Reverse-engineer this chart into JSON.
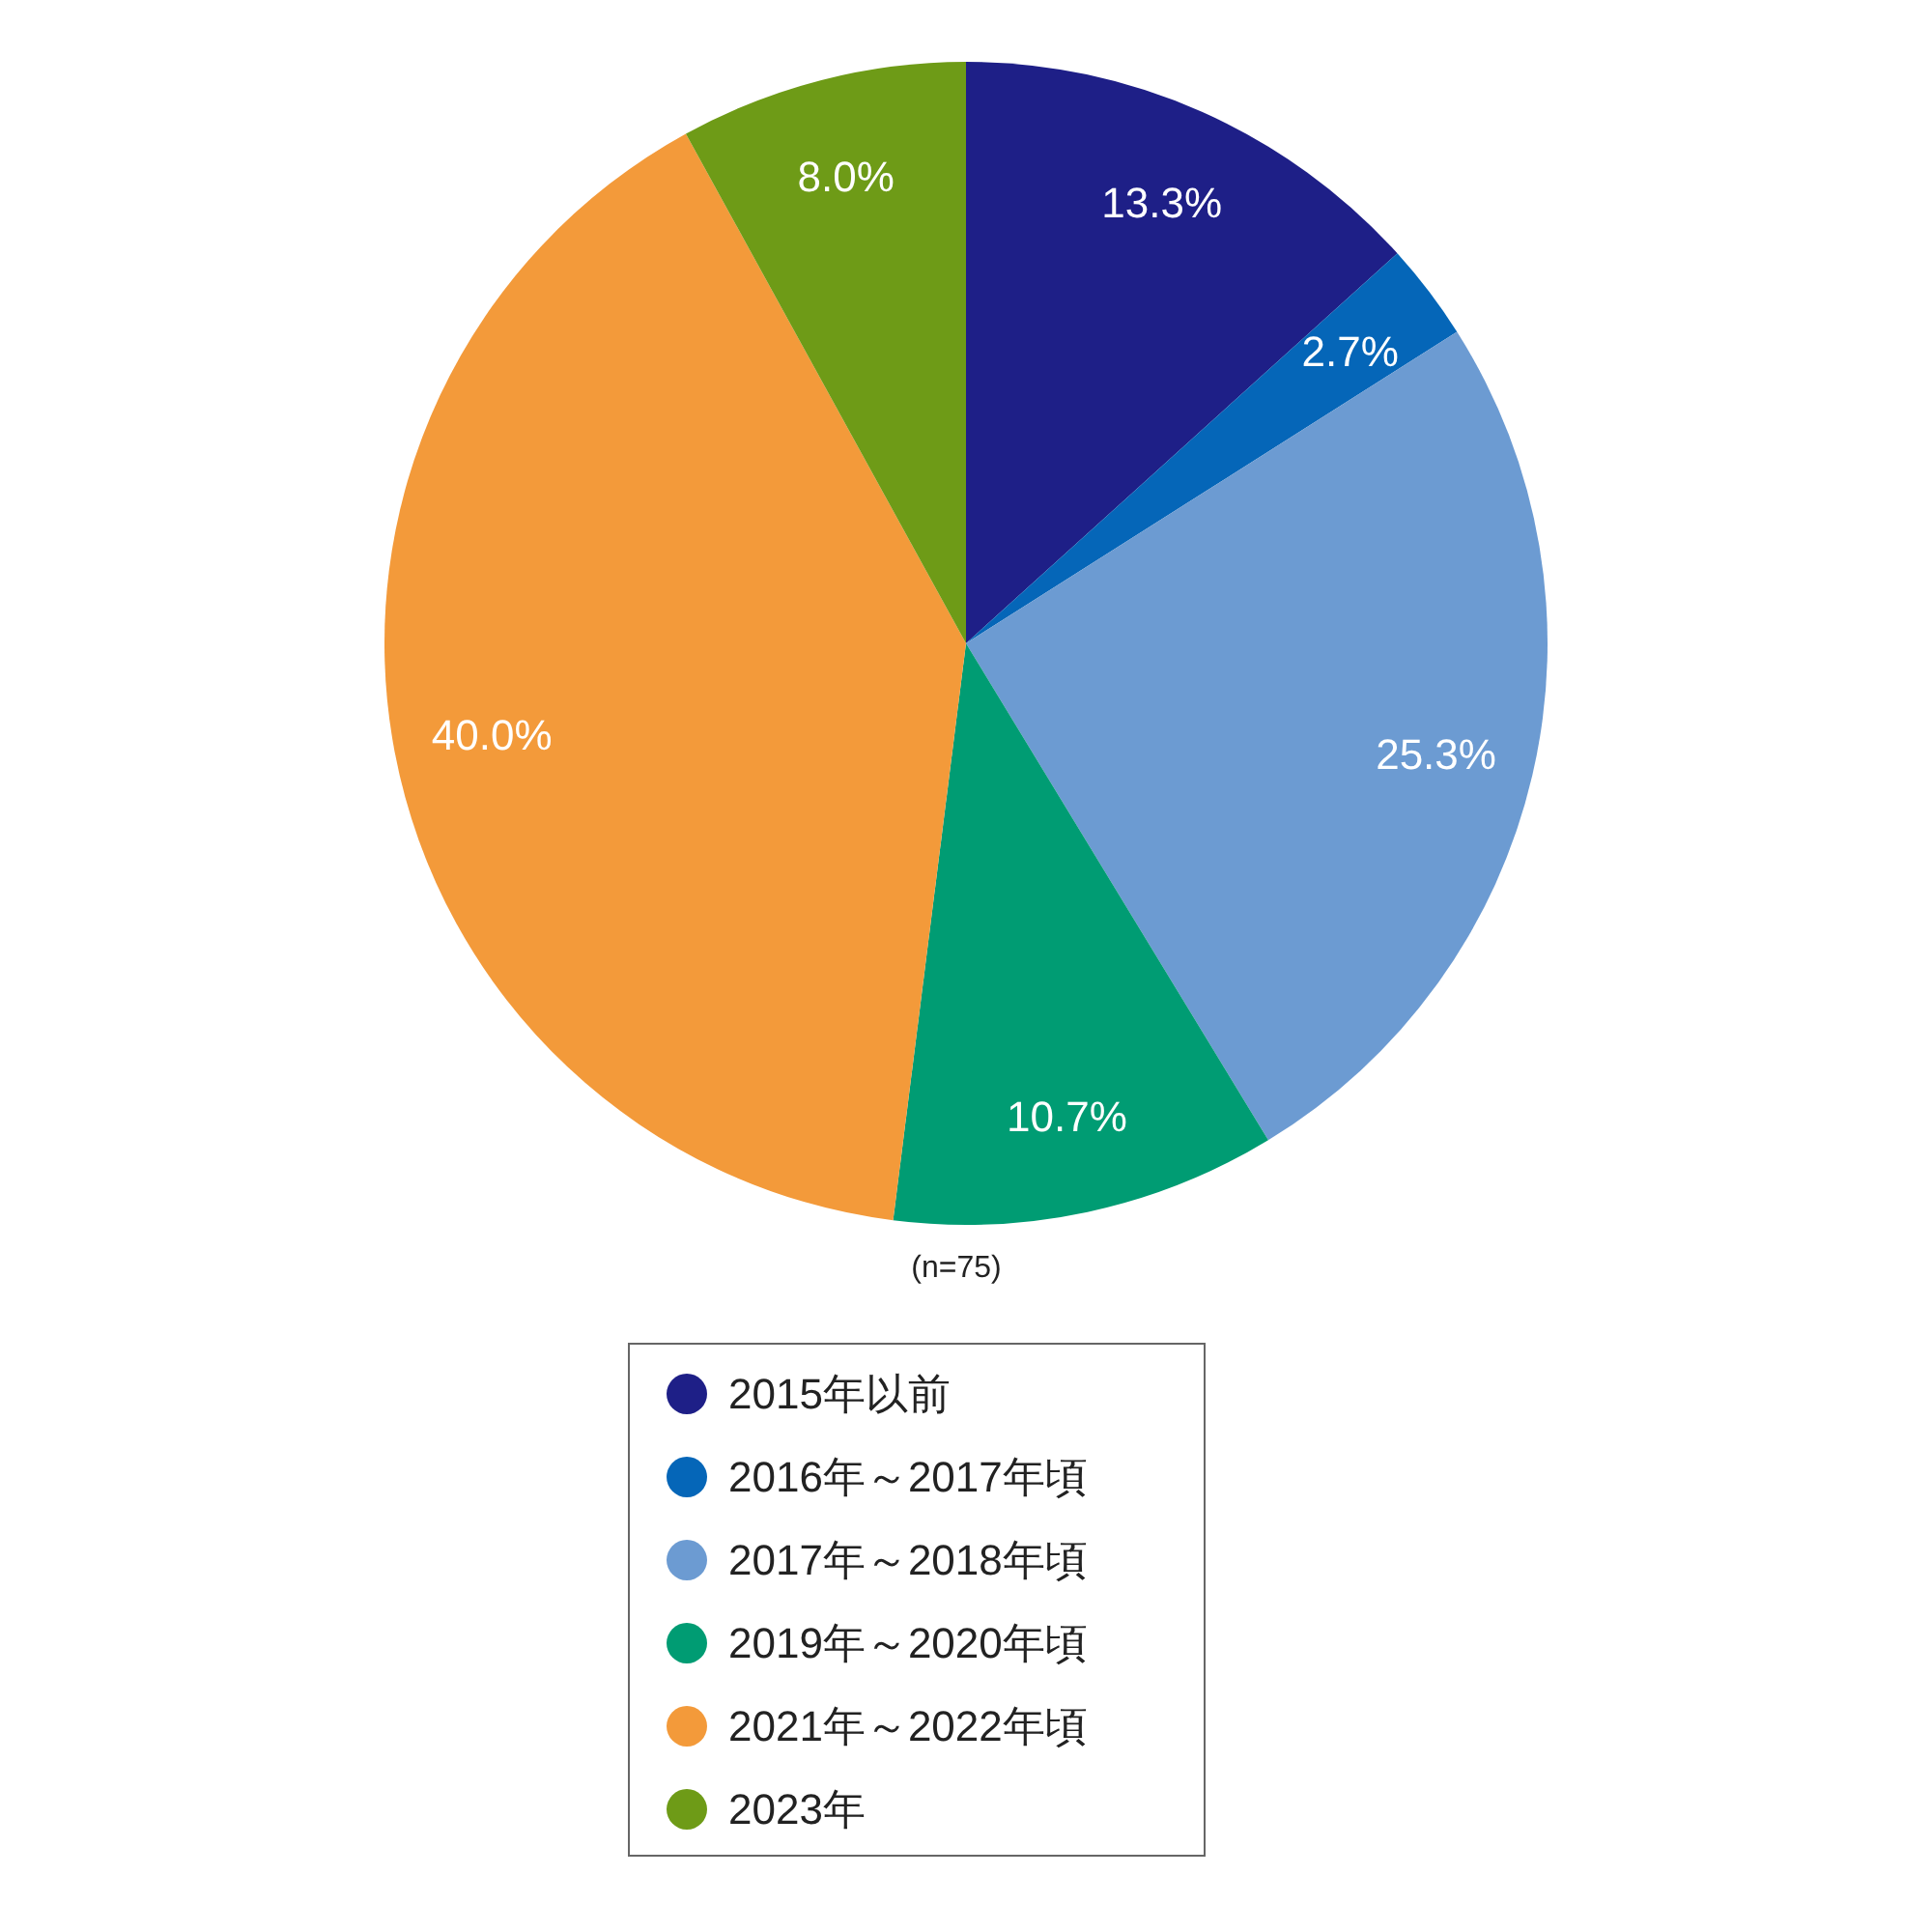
{
  "chart_data": {
    "type": "pie",
    "categories": [
      "2015年以前",
      "2016年～2017年頃",
      "2017年～2018年頃",
      "2019年～2020年頃",
      "2021年～2022年頃",
      "2023年"
    ],
    "values": [
      13.3,
      2.7,
      25.3,
      10.7,
      40.0,
      8.0
    ],
    "value_labels": [
      "13.3%",
      "2.7%",
      "25.3%",
      "10.7%",
      "40.0%",
      "8.0%"
    ],
    "colors": [
      "#1e1f87",
      "#0566b8",
      "#6c9bd2",
      "#009c73",
      "#f39a3a",
      "#6e9b17"
    ],
    "legend": "bottom",
    "annotations": [
      "(n=75)"
    ]
  }
}
